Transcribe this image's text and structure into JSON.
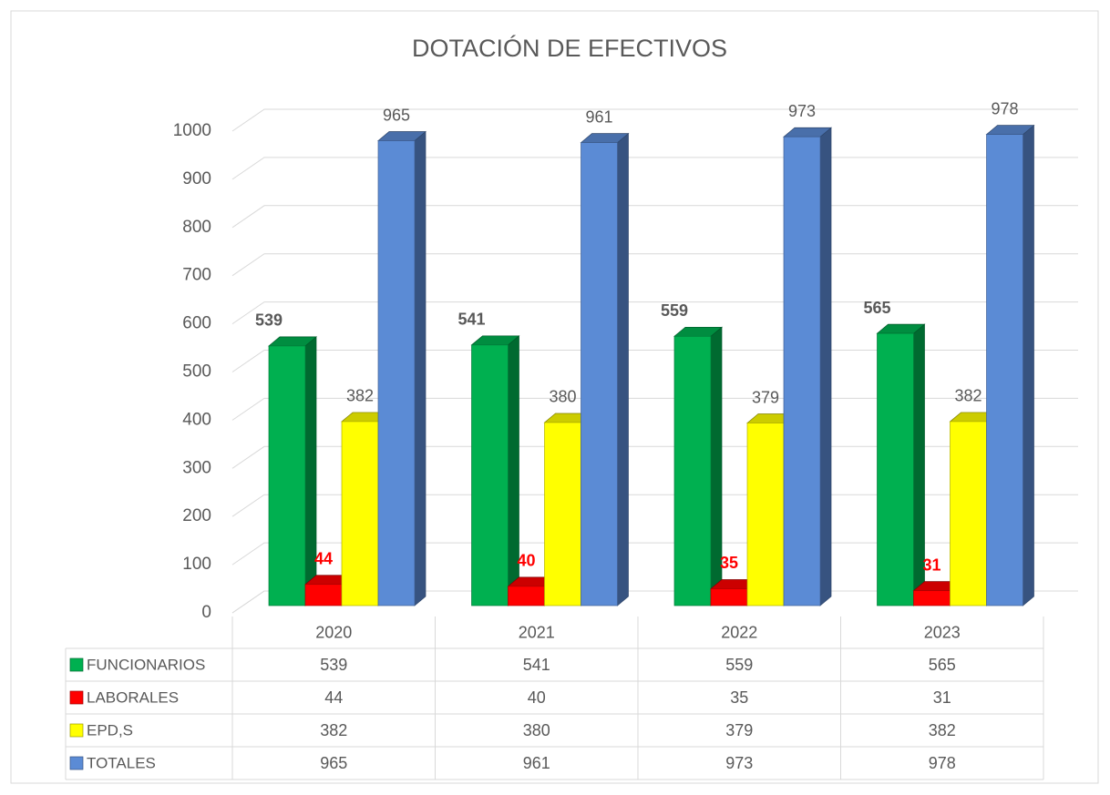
{
  "chart_data": {
    "type": "bar",
    "title": "DOTACIÓN DE EFECTIVOS",
    "categories": [
      "2020",
      "2021",
      "2022",
      "2023"
    ],
    "series": [
      {
        "name": "FUNCIONARIOS",
        "color": "#00b050",
        "values": [
          539,
          541,
          559,
          565
        ]
      },
      {
        "name": "LABORALES",
        "color": "#ff0000",
        "values": [
          44,
          40,
          35,
          31
        ]
      },
      {
        "name": "EPD,S",
        "color": "#ffff00",
        "values": [
          382,
          380,
          379,
          382
        ]
      },
      {
        "name": "TOTALES",
        "color": "#5b8bd5",
        "values": [
          965,
          961,
          973,
          978
        ]
      }
    ],
    "ylim": [
      0,
      1000
    ],
    "yticks": [
      0,
      100,
      200,
      300,
      400,
      500,
      600,
      700,
      800,
      900,
      1000
    ],
    "grid": true
  }
}
